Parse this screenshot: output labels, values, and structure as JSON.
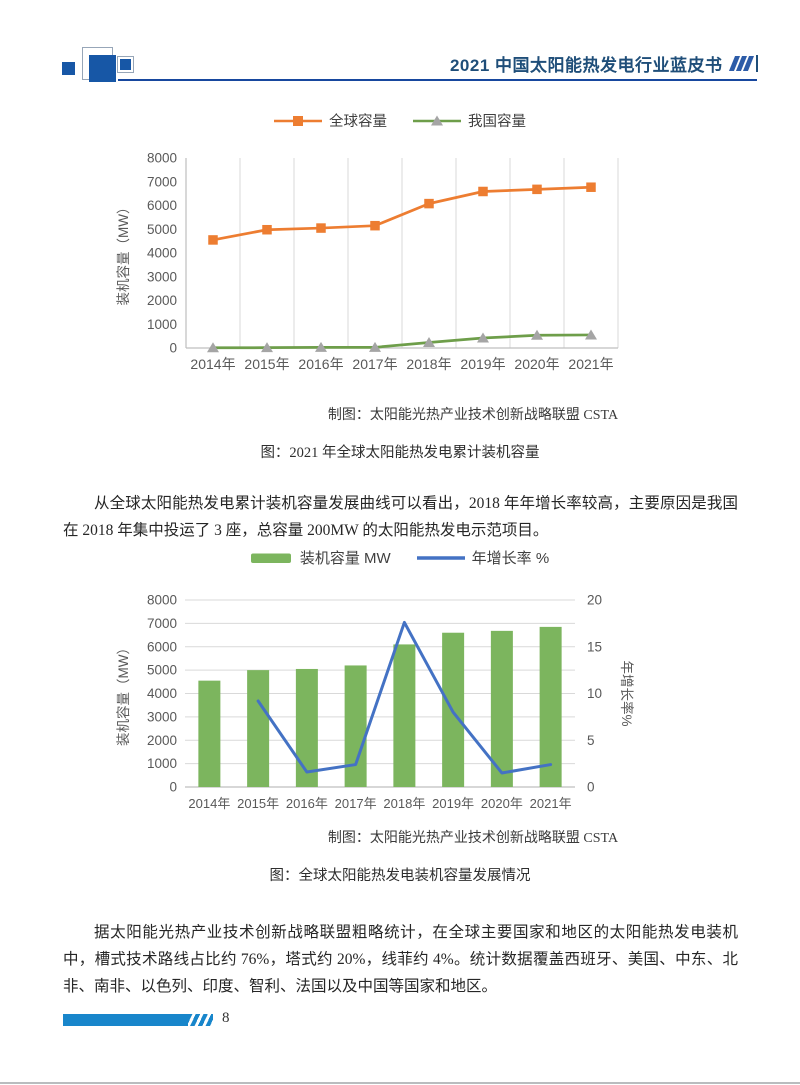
{
  "header": {
    "title": "2021 中国太阳能热发电行业蓝皮书"
  },
  "colors": {
    "header_blue": "#1F4E79",
    "rule_blue": "#17479E",
    "logo_blue": "#1757A6",
    "footer_blue": "#1886CB",
    "global_series_orange": "#ED7D31",
    "china_series_green": "#6E9E4A",
    "china_marker_gray": "#A5A5A5",
    "bar_green": "#7CB55E",
    "growth_line_blue": "#4472C4",
    "axis_text_gray": "#595959",
    "gridline_gray": "#D9D9D9"
  },
  "chart_data": [
    {
      "type": "line",
      "categories": [
        "2014年",
        "2015年",
        "2016年",
        "2017年",
        "2018年",
        "2019年",
        "2020年",
        "2021年"
      ],
      "series": [
        {
          "name": "全球容量",
          "values": [
            4550,
            4980,
            5050,
            5150,
            6080,
            6590,
            6680,
            6770
          ],
          "color": "#ED7D31",
          "marker": "square"
        },
        {
          "name": "我国容量",
          "values": [
            10,
            14,
            28,
            28,
            230,
            420,
            535,
            550
          ],
          "color": "#6E9E4A",
          "marker": "triangle",
          "marker_color": "#A5A5A5"
        }
      ],
      "ylabel": "装机容量（MW）",
      "ylim": [
        0,
        8000
      ],
      "yticks": [
        0,
        1000,
        2000,
        3000,
        4000,
        5000,
        6000,
        7000,
        8000
      ],
      "grid": "vertical",
      "legend_position": "top"
    },
    {
      "type": "bar+line",
      "categories": [
        "2014年",
        "2015年",
        "2016年",
        "2017年",
        "2018年",
        "2019年",
        "2020年",
        "2021年"
      ],
      "series": [
        {
          "name": "装机容量 MW",
          "type": "bar",
          "axis": "left",
          "values": [
            4550,
            5000,
            5050,
            5200,
            6100,
            6600,
            6680,
            6850
          ],
          "color": "#7CB55E"
        },
        {
          "name": "年增长率 %",
          "type": "line",
          "axis": "right",
          "values": [
            null,
            9.2,
            1.6,
            2.4,
            17.6,
            8.0,
            1.5,
            2.4
          ],
          "color": "#4472C4"
        }
      ],
      "ylabel_left": "装机容量（MW）",
      "ylabel_right": "年增长率%",
      "ylim_left": [
        0,
        8000
      ],
      "yticks_left": [
        0,
        1000,
        2000,
        3000,
        4000,
        5000,
        6000,
        7000,
        8000
      ],
      "ylim_right": [
        0,
        20
      ],
      "yticks_right": [
        0,
        5,
        10,
        15,
        20
      ],
      "grid": "horizontal",
      "legend_position": "top"
    }
  ],
  "captions": {
    "chart1_source": "制图：太阳能光热产业技术创新战略联盟 CSTA",
    "chart1_figure": "图：2021 年全球太阳能热发电累计装机容量",
    "chart2_source": "制图：太阳能光热产业技术创新战略联盟 CSTA",
    "chart2_figure": "图：全球太阳能热发电装机容量发展情况"
  },
  "paragraphs": {
    "p1": "从全球太阳能热发电累计装机容量发展曲线可以看出，2018 年年增长率较高，主要原因是我国在 2018 年集中投运了 3 座，总容量 200MW 的太阳能热发电示范项目。",
    "p2": "据太阳能光热产业技术创新战略联盟粗略统计，在全球主要国家和地区的太阳能热发电装机中，槽式技术路线占比约 76%，塔式约 20%，线菲约 4%。统计数据覆盖西班牙、美国、中东、北非、南非、以色列、印度、智利、法国以及中国等国家和地区。"
  },
  "footer": {
    "page_number": "8"
  }
}
